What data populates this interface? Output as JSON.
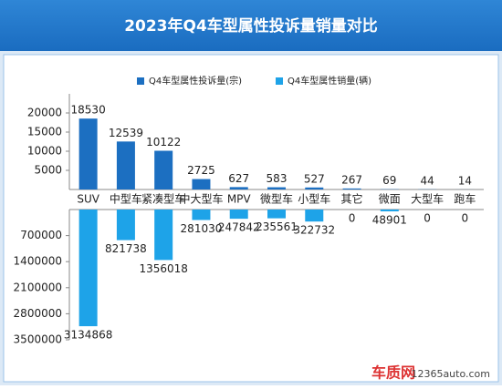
{
  "chart_data": [
    {
      "type": "bar",
      "title": "2023年Q4车型属性投诉量销量对比",
      "categories": [
        "SUV",
        "中型车",
        "紧凑型车",
        "中大型车",
        "MPV",
        "微型车",
        "小型车",
        "其它",
        "微面",
        "大型车",
        "跑车"
      ],
      "series": [
        {
          "name": "Q4车型属性投诉量(宗)",
          "color": "#1c6fc1",
          "values": [
            18530,
            12539,
            10122,
            2725,
            627,
            583,
            527,
            267,
            69,
            44,
            14
          ]
        }
      ],
      "ylim": [
        0,
        25000
      ],
      "yticks": [
        5000,
        10000,
        15000,
        20000
      ],
      "y_reversed": false
    },
    {
      "type": "bar",
      "series": [
        {
          "name": "Q4车型属性销量(辆)",
          "color": "#1ea3e8",
          "values": [
            3134868,
            821738,
            1356018,
            281030,
            247842,
            235561,
            322732,
            0,
            48901,
            0,
            0
          ]
        }
      ],
      "ylim": [
        0,
        3500000
      ],
      "yticks": [
        700000,
        1400000,
        2100000,
        2800000,
        3500000
      ],
      "y_reversed": true
    }
  ],
  "watermark": {
    "logo": "车质网",
    "site": "12365auto.com"
  }
}
